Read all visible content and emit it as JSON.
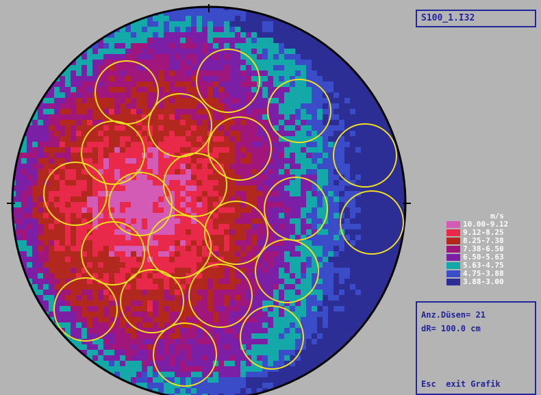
{
  "file_label": "S100_1.I32",
  "legend": {
    "unit": "m/s",
    "entries": [
      {
        "label": "10.00-9.12",
        "color": "#d35bb5"
      },
      {
        "label": "9.12-8.25",
        "color": "#e8294a"
      },
      {
        "label": "8.25-7.38",
        "color": "#b3281e"
      },
      {
        "label": "7.38-6.50",
        "color": "#a0167a"
      },
      {
        "label": "6.50-5.63",
        "color": "#7a1fa6"
      },
      {
        "label": "5.63-4.75",
        "color": "#14a8a8"
      },
      {
        "label": "4.75-3.88",
        "color": "#3a4cc8"
      },
      {
        "label": "3.88-3.00",
        "color": "#2d2d96"
      }
    ]
  },
  "info": {
    "nozzles": "Anz.Düsen= 21",
    "dr": "dR= 100.0 cm",
    "esc": "Esc",
    "exit": "exit Grafik"
  },
  "colors": {
    "background": "#b4b4b4",
    "panel_border": "#23239a",
    "panel_text": "#23239a",
    "nozzle_circle": "#f0e020",
    "outline": "#000000"
  }
}
